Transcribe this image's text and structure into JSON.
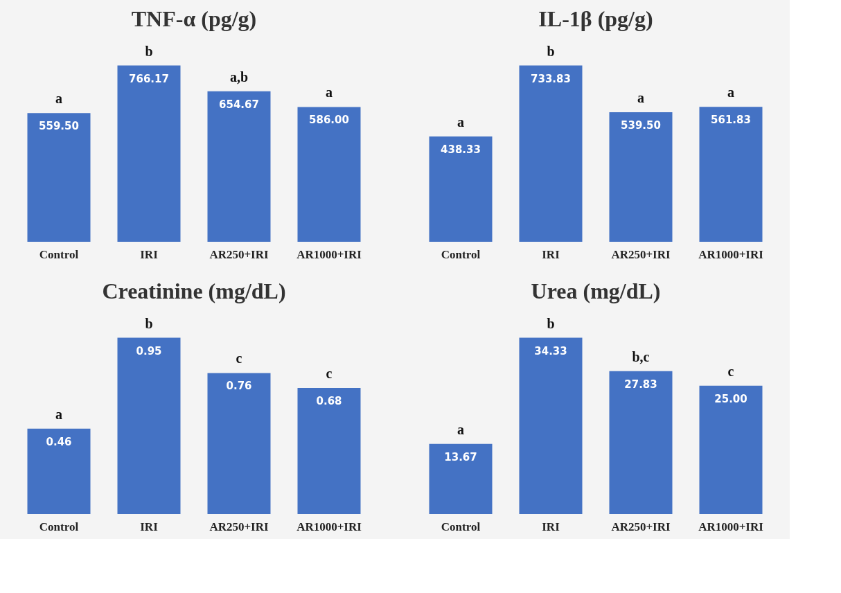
{
  "chart_data": [
    {
      "type": "bar",
      "title": "TNF-α (pg/g)",
      "categories": [
        "Control",
        "IRI",
        "AR250+IRI",
        "AR1000+IRI"
      ],
      "values": [
        559.5,
        766.17,
        654.67,
        586.0
      ],
      "value_labels": [
        "559.50",
        "766.17",
        "654.67",
        "586.00"
      ],
      "color": "#4472c4",
      "tick_labels": "x",
      "annotations": [
        {
          "text": "a",
          "x": "Control",
          "y": 559.5
        },
        {
          "text": "b",
          "x": "IRI",
          "y": 766.17
        },
        {
          "text": "a,b",
          "x": "AR250+IRI",
          "y": 654.67
        },
        {
          "text": "a",
          "x": "AR1000+IRI",
          "y": 586.0
        }
      ]
    },
    {
      "type": "bar",
      "title": "IL-1β (pg/g)",
      "categories": [
        "Control",
        "IRI",
        "AR250+IRI",
        "AR1000+IRI"
      ],
      "values": [
        438.33,
        733.83,
        539.5,
        561.83
      ],
      "value_labels": [
        "438.33",
        "733.83",
        "539.50",
        "561.83"
      ],
      "color": "#4472c4",
      "tick_labels": "x",
      "annotations": [
        {
          "text": "a",
          "x": "Control",
          "y": 438.33
        },
        {
          "text": "b",
          "x": "IRI",
          "y": 733.83
        },
        {
          "text": "a",
          "x": "AR250+IRI",
          "y": 539.5
        },
        {
          "text": "a",
          "x": "AR1000+IRI",
          "y": 561.83
        }
      ]
    },
    {
      "type": "bar",
      "title": "Creatinine (mg/dL)",
      "categories": [
        "Control",
        "IRI",
        "AR250+IRI",
        "AR1000+IRI"
      ],
      "values": [
        0.46,
        0.95,
        0.76,
        0.68
      ],
      "value_labels": [
        "0.46",
        "0.95",
        "0.76",
        "0.68"
      ],
      "color": "#4472c4",
      "tick_labels": "x",
      "annotations": [
        {
          "text": "a",
          "x": "Control",
          "y": 0.46
        },
        {
          "text": "b",
          "x": "IRI",
          "y": 0.95
        },
        {
          "text": "c",
          "x": "AR250+IRI",
          "y": 0.76
        },
        {
          "text": "c",
          "x": "AR1000+IRI",
          "y": 0.68
        }
      ]
    },
    {
      "type": "bar",
      "title": "Urea (mg/dL)",
      "categories": [
        "Control",
        "IRI",
        "AR250+IRI",
        "AR1000+IRI"
      ],
      "values": [
        13.67,
        34.33,
        27.83,
        25.0
      ],
      "value_labels": [
        "13.67",
        "34.33",
        "27.83",
        "25.00"
      ],
      "color": "#4472c4",
      "tick_labels": "x",
      "annotations": [
        {
          "text": "a",
          "x": "Control",
          "y": 13.67
        },
        {
          "text": "b",
          "x": "IRI",
          "y": 34.33
        },
        {
          "text": "b,c",
          "x": "AR250+IRI",
          "y": 27.83
        },
        {
          "text": "c",
          "x": "AR1000+IRI",
          "y": 25.0
        }
      ]
    }
  ]
}
